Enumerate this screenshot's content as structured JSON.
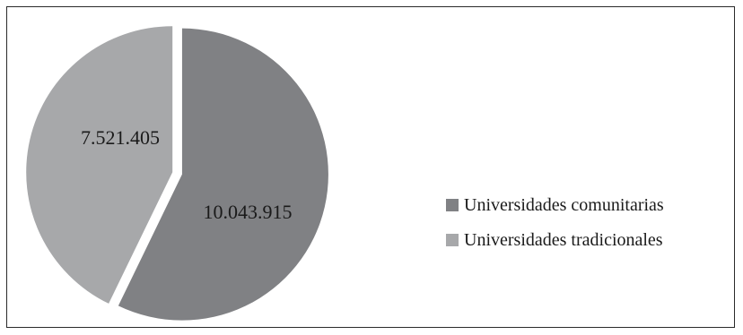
{
  "chart_data": {
    "type": "pie",
    "title": "",
    "slices": [
      {
        "label": "Universidades comunitarias",
        "value": 10043915,
        "value_label": "10.043.915",
        "color": "#808184"
      },
      {
        "label": "Universidades tradicionales",
        "value": 7521405,
        "value_label": "7.521.405",
        "color": "#a7a8aa"
      }
    ],
    "legend_placement": "right",
    "exploded": true,
    "start_angle_deg": 0,
    "direction": "clockwise"
  }
}
